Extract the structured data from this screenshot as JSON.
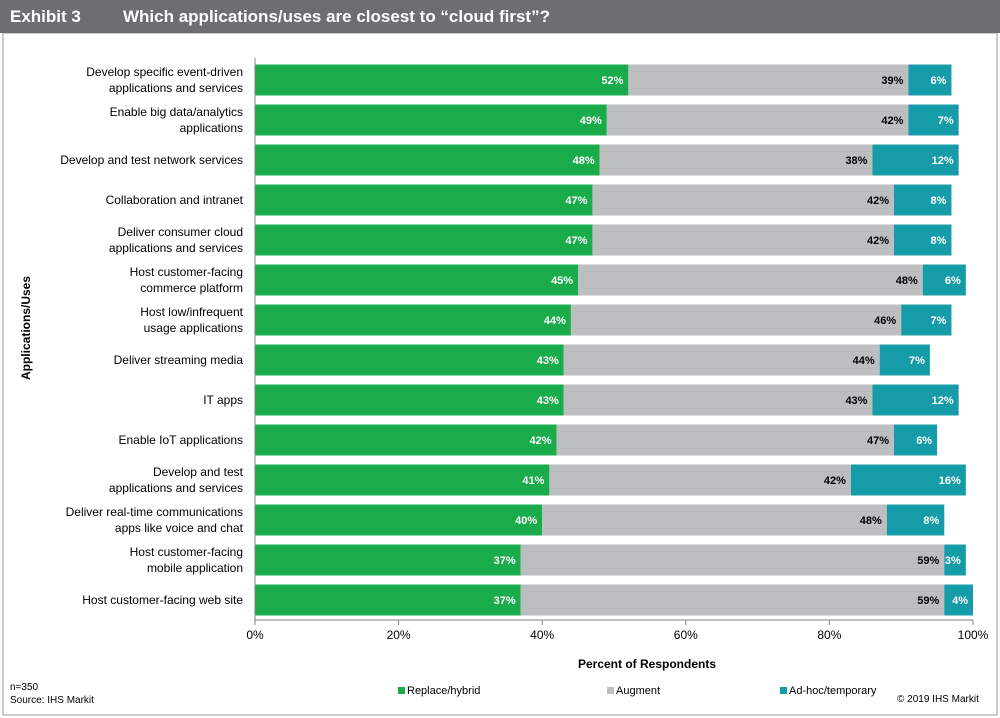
{
  "header": {
    "exhibit": "Exhibit 3",
    "title": "Which applications/uses are closest to “cloud first”?"
  },
  "chart_data": {
    "type": "bar",
    "orientation": "horizontal",
    "stacked": true,
    "categories": [
      "Develop specific event-driven\napplications and services",
      "Enable big data/analytics\napplications",
      "Develop and test network services",
      "Collaboration and intranet",
      "Deliver consumer cloud\napplications and services",
      "Host customer-facing\ncommerce platform",
      "Host low/infrequent\nusage applications",
      "Deliver streaming media",
      "IT apps",
      "Enable IoT applications",
      "Develop and test\napplications and services",
      "Deliver real-time communications\napps like voice and chat",
      "Host customer-facing\nmobile application",
      "Host customer-facing web site"
    ],
    "series": [
      {
        "name": "Replace/hybrid",
        "color": "#1aab4b",
        "values": [
          52,
          49,
          48,
          47,
          47,
          45,
          44,
          43,
          43,
          42,
          41,
          40,
          37,
          37
        ]
      },
      {
        "name": "Augment",
        "color": "#bcbec0",
        "values": [
          39,
          42,
          38,
          42,
          42,
          48,
          46,
          44,
          43,
          47,
          42,
          48,
          59,
          59
        ]
      },
      {
        "name": "Ad-hoc/temporary",
        "color": "#159ca8",
        "values": [
          6,
          7,
          12,
          8,
          8,
          6,
          7,
          7,
          12,
          6,
          16,
          8,
          3,
          4
        ]
      }
    ],
    "xlabel": "Percent of Respondents",
    "ylabel": "Applications/Uses",
    "xlim": [
      0,
      100
    ],
    "xticks": [
      0,
      20,
      40,
      60,
      80,
      100
    ],
    "xtick_labels": [
      "0%",
      "20%",
      "40%",
      "60%",
      "80%",
      "100%"
    ],
    "legend_position": "bottom",
    "grid": false
  },
  "footer": {
    "n": "n=350",
    "source": "Source:  IHS Markit",
    "copyright": "© 2019  IHS Markit"
  }
}
